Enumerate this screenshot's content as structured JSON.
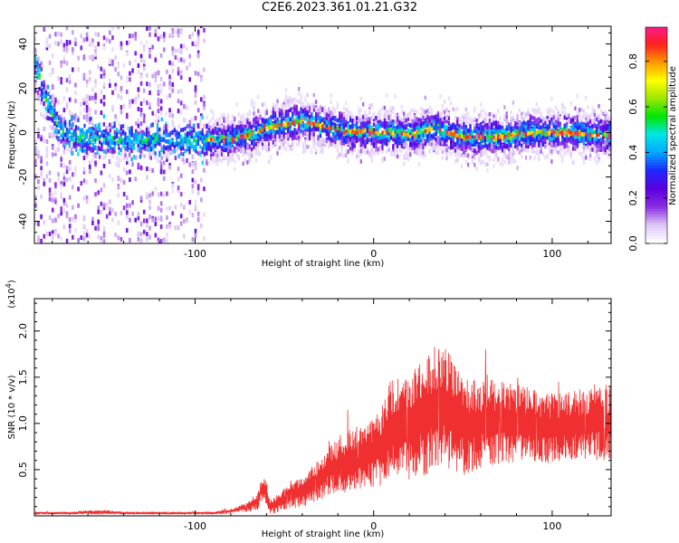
{
  "title": "C2E6.2023.361.01.21.G32",
  "chart_data": [
    {
      "type": "heatmap",
      "xlabel": "Height of straight line (km)",
      "ylabel": "Frequency (Hz)",
      "xlim": [
        -190,
        133
      ],
      "ylim": [
        -50,
        48
      ],
      "x_ticks": [
        -100,
        0,
        100
      ],
      "y_ticks": [
        -40,
        -20,
        0,
        20,
        40
      ],
      "colorbar": {
        "label": "Normalized spectral amplitude",
        "range": [
          0.0,
          0.95
        ],
        "ticks": [
          0.0,
          0.2,
          0.4,
          0.6,
          0.8
        ],
        "colors": [
          "#ffffff",
          "#dcc4f5",
          "#8a2be2",
          "#5a00e0",
          "#1e28ff",
          "#00a8ff",
          "#00e6e6",
          "#00e600",
          "#9ee600",
          "#ffff00",
          "#ff9900",
          "#ff2020",
          "#ff1a8c"
        ]
      },
      "ridge": {
        "x": [
          -190,
          -186,
          -182,
          -178,
          -174,
          -170,
          -160,
          -150,
          -140,
          -130,
          -120,
          -100,
          -90,
          -80,
          -70,
          -60,
          -50,
          -40,
          -30,
          -20,
          -10,
          0,
          10,
          20,
          30,
          35,
          40,
          50,
          60,
          70,
          80,
          90,
          100,
          110,
          120,
          133
        ],
        "y": [
          32,
          20,
          10,
          4,
          0,
          -2,
          -3,
          -3,
          -4,
          -4,
          -3,
          -4,
          -3,
          -3,
          -1,
          2,
          4,
          5,
          3,
          1,
          0,
          0,
          0,
          -1,
          1,
          2,
          0,
          -2,
          -2,
          -2,
          -1,
          0,
          0,
          0,
          -1,
          -1
        ]
      }
    },
    {
      "type": "line",
      "color": "#f03030",
      "xlabel": "Height of straight line (km)",
      "ylabel": "SNR (10 * v/v)",
      "y_scale_label": "(x10",
      "y_scale_exp": "4",
      "y_scale_suffix": ")",
      "xlim": [
        -190,
        133
      ],
      "ylim": [
        0,
        2.35
      ],
      "x_ticks": [
        -100,
        0,
        100
      ],
      "y_ticks": [
        0.5,
        1.0,
        1.5,
        2.0
      ],
      "y_tick_labels": [
        "0.5",
        "1.0",
        "1.5",
        "2.0"
      ],
      "series": [
        {
          "x": [
            -190,
            -180,
            -170,
            -160,
            -150,
            -140,
            -130,
            -120,
            -110,
            -100,
            -90,
            -85,
            -80,
            -75,
            -70,
            -65,
            -62,
            -60,
            -58,
            -55,
            -50,
            -45,
            -40,
            -35,
            -30,
            -25,
            -20,
            -15,
            -10,
            -5,
            0,
            5,
            10,
            15,
            20,
            25,
            30,
            35,
            40,
            45,
            50,
            55,
            60,
            70,
            80,
            90,
            100,
            110,
            120,
            125,
            130,
            133
          ],
          "y": [
            0.03,
            0.03,
            0.03,
            0.04,
            0.04,
            0.03,
            0.03,
            0.03,
            0.03,
            0.03,
            0.03,
            0.04,
            0.05,
            0.08,
            0.1,
            0.16,
            0.3,
            0.25,
            0.1,
            0.12,
            0.18,
            0.22,
            0.28,
            0.33,
            0.38,
            0.52,
            0.52,
            0.6,
            0.64,
            0.62,
            0.7,
            0.78,
            0.95,
            0.95,
            0.95,
            1.03,
            1.08,
            1.2,
            1.22,
            1.05,
            0.98,
            0.98,
            1.0,
            1.02,
            1.0,
            0.98,
            0.95,
            0.98,
            1.0,
            1.02,
            1.0,
            1.0
          ],
          "amp": [
            0.01,
            0.01,
            0.01,
            0.02,
            0.02,
            0.01,
            0.01,
            0.01,
            0.01,
            0.01,
            0.01,
            0.02,
            0.02,
            0.03,
            0.05,
            0.08,
            0.12,
            0.1,
            0.06,
            0.08,
            0.1,
            0.12,
            0.15,
            0.18,
            0.2,
            0.25,
            0.25,
            0.28,
            0.3,
            0.3,
            0.33,
            0.38,
            0.45,
            0.45,
            0.48,
            0.5,
            0.55,
            0.55,
            0.55,
            0.5,
            0.45,
            0.45,
            0.4,
            0.38,
            0.35,
            0.33,
            0.32,
            0.32,
            0.32,
            0.35,
            0.35,
            0.35
          ]
        }
      ]
    }
  ]
}
